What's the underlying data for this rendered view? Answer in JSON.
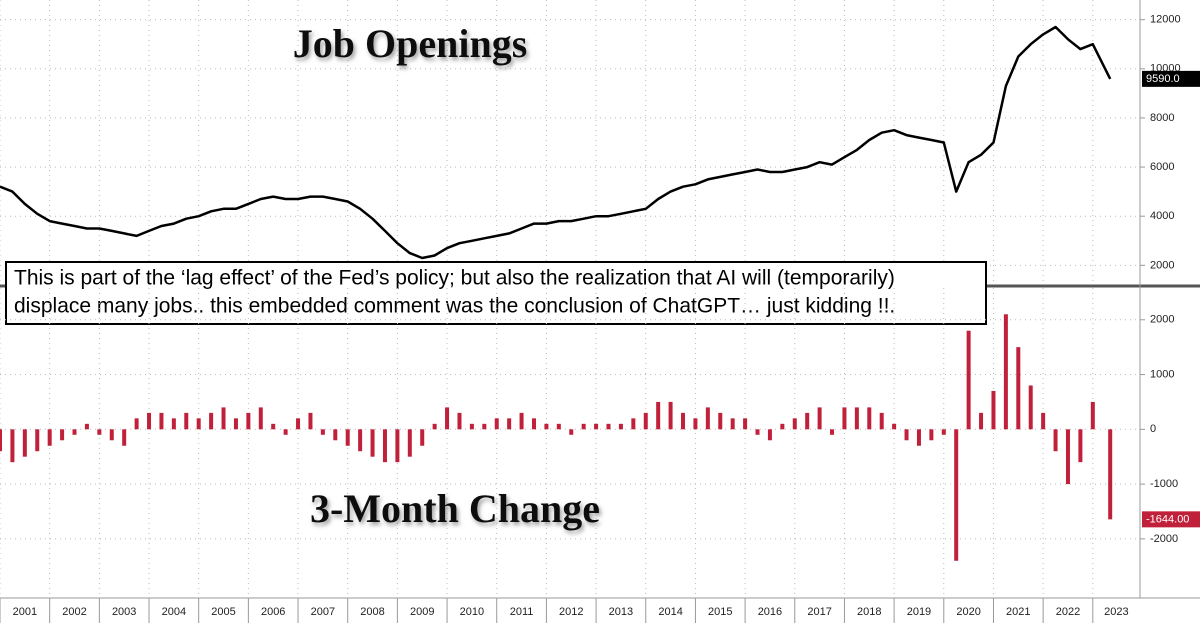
{
  "chart_data": [
    {
      "type": "line",
      "title": "Job Openings",
      "x": [
        2001.0,
        2001.25,
        2001.5,
        2001.75,
        2002.0,
        2002.25,
        2002.5,
        2002.75,
        2003.0,
        2003.25,
        2003.5,
        2003.75,
        2004.0,
        2004.25,
        2004.5,
        2004.75,
        2005.0,
        2005.25,
        2005.5,
        2005.75,
        2006.0,
        2006.25,
        2006.5,
        2006.75,
        2007.0,
        2007.25,
        2007.5,
        2007.75,
        2008.0,
        2008.25,
        2008.5,
        2008.75,
        2009.0,
        2009.25,
        2009.5,
        2009.75,
        2010.0,
        2010.25,
        2010.5,
        2010.75,
        2011.0,
        2011.25,
        2011.5,
        2011.75,
        2012.0,
        2012.25,
        2012.5,
        2012.75,
        2013.0,
        2013.25,
        2013.5,
        2013.75,
        2014.0,
        2014.25,
        2014.5,
        2014.75,
        2015.0,
        2015.25,
        2015.5,
        2015.75,
        2016.0,
        2016.25,
        2016.5,
        2016.75,
        2017.0,
        2017.25,
        2017.5,
        2017.75,
        2018.0,
        2018.25,
        2018.5,
        2018.75,
        2019.0,
        2019.25,
        2019.5,
        2019.75,
        2020.0,
        2020.25,
        2020.5,
        2020.75,
        2021.0,
        2021.25,
        2021.5,
        2021.75,
        2022.0,
        2022.25,
        2022.5,
        2022.75,
        2023.0,
        2023.35
      ],
      "series": [
        {
          "name": "Job Openings",
          "color": "#000000",
          "values": [
            5200,
            5000,
            4500,
            4100,
            3800,
            3700,
            3600,
            3500,
            3500,
            3400,
            3300,
            3200,
            3400,
            3600,
            3700,
            3900,
            4000,
            4200,
            4300,
            4300,
            4500,
            4700,
            4800,
            4700,
            4700,
            4800,
            4800,
            4700,
            4600,
            4300,
            3900,
            3400,
            2900,
            2500,
            2300,
            2400,
            2700,
            2900,
            3000,
            3100,
            3200,
            3300,
            3500,
            3700,
            3700,
            3800,
            3800,
            3900,
            4000,
            4000,
            4100,
            4200,
            4300,
            4700,
            5000,
            5200,
            5300,
            5500,
            5600,
            5700,
            5800,
            5900,
            5800,
            5800,
            5900,
            6000,
            6200,
            6100,
            6400,
            6700,
            7100,
            7400,
            7500,
            7300,
            7200,
            7100,
            7000,
            5000,
            6200,
            6500,
            7000,
            9300,
            10500,
            11000,
            11400,
            11700,
            11200,
            10800,
            11000,
            9590
          ],
          "value_labels": [
            null,
            null,
            null,
            null,
            null,
            null,
            null,
            null,
            null,
            null,
            null,
            null,
            null,
            null,
            null,
            null,
            null,
            null,
            null,
            null,
            null,
            null,
            null,
            null,
            null,
            null,
            null,
            null,
            null,
            null,
            null,
            null,
            null,
            null,
            null,
            null,
            null,
            null,
            null,
            null,
            null,
            null,
            null,
            null,
            null,
            null,
            null,
            null,
            null,
            null,
            null,
            null,
            null,
            null,
            null,
            null,
            null,
            null,
            null,
            null,
            null,
            null,
            null,
            null,
            null,
            null,
            null,
            null,
            null,
            null,
            null,
            null,
            null,
            null,
            null,
            null,
            null,
            null,
            null,
            null,
            null,
            null,
            null,
            null,
            null,
            null,
            null,
            null,
            null,
            "9590.0"
          ]
        }
      ],
      "xlim": [
        2001,
        2023.95
      ],
      "xticks": [
        2001,
        2002,
        2003,
        2004,
        2005,
        2006,
        2007,
        2008,
        2009,
        2010,
        2011,
        2012,
        2013,
        2014,
        2015,
        2016,
        2017,
        2018,
        2019,
        2020,
        2021,
        2022,
        2023
      ],
      "ylim": [
        1200,
        12800
      ],
      "yticks": [
        2000,
        4000,
        6000,
        8000,
        10000,
        12000
      ],
      "grid": true,
      "annotation": [
        "This is part of the ‘lag effect’ of the Fed’s policy; but also the realization that AI will (temporarily)",
        "displace many jobs.. this embedded comment was the conclusion of ChatGPT… just kidding !!."
      ]
    },
    {
      "type": "bar",
      "title": "3-Month Change",
      "x": [
        2001.0,
        2001.25,
        2001.5,
        2001.75,
        2002.0,
        2002.25,
        2002.5,
        2002.75,
        2003.0,
        2003.25,
        2003.5,
        2003.75,
        2004.0,
        2004.25,
        2004.5,
        2004.75,
        2005.0,
        2005.25,
        2005.5,
        2005.75,
        2006.0,
        2006.25,
        2006.5,
        2006.75,
        2007.0,
        2007.25,
        2007.5,
        2007.75,
        2008.0,
        2008.25,
        2008.5,
        2008.75,
        2009.0,
        2009.25,
        2009.5,
        2009.75,
        2010.0,
        2010.25,
        2010.5,
        2010.75,
        2011.0,
        2011.25,
        2011.5,
        2011.75,
        2012.0,
        2012.25,
        2012.5,
        2012.75,
        2013.0,
        2013.25,
        2013.5,
        2013.75,
        2014.0,
        2014.25,
        2014.5,
        2014.75,
        2015.0,
        2015.25,
        2015.5,
        2015.75,
        2016.0,
        2016.25,
        2016.5,
        2016.75,
        2017.0,
        2017.25,
        2017.5,
        2017.75,
        2018.0,
        2018.25,
        2018.5,
        2018.75,
        2019.0,
        2019.25,
        2019.5,
        2019.75,
        2020.0,
        2020.25,
        2020.5,
        2020.75,
        2021.0,
        2021.25,
        2021.5,
        2021.75,
        2022.0,
        2022.25,
        2022.5,
        2022.75,
        2023.0,
        2023.35
      ],
      "series": [
        {
          "name": "3-Month Change",
          "color": "#c0203a",
          "values": [
            -400,
            -600,
            -500,
            -400,
            -300,
            -200,
            -100,
            100,
            -100,
            -200,
            -300,
            200,
            300,
            300,
            200,
            300,
            200,
            300,
            400,
            200,
            300,
            400,
            100,
            -100,
            200,
            300,
            -100,
            -200,
            -300,
            -400,
            -500,
            -600,
            -600,
            -500,
            -300,
            100,
            400,
            300,
            100,
            100,
            200,
            200,
            300,
            200,
            100,
            100,
            -100,
            100,
            100,
            100,
            100,
            200,
            300,
            500,
            500,
            300,
            200,
            400,
            300,
            200,
            200,
            -100,
            -200,
            100,
            200,
            300,
            400,
            -100,
            400,
            400,
            400,
            300,
            100,
            -200,
            -300,
            -200,
            -100,
            -2400,
            1800,
            300,
            700,
            2100,
            1500,
            800,
            300,
            -400,
            -1000,
            -600,
            500,
            -1644
          ],
          "value_labels": [
            null,
            null,
            null,
            null,
            null,
            null,
            null,
            null,
            null,
            null,
            null,
            null,
            null,
            null,
            null,
            null,
            null,
            null,
            null,
            null,
            null,
            null,
            null,
            null,
            null,
            null,
            null,
            null,
            null,
            null,
            null,
            null,
            null,
            null,
            null,
            null,
            null,
            null,
            null,
            null,
            null,
            null,
            null,
            null,
            null,
            null,
            null,
            null,
            null,
            null,
            null,
            null,
            null,
            null,
            null,
            null,
            null,
            null,
            null,
            null,
            null,
            null,
            null,
            null,
            null,
            null,
            null,
            null,
            null,
            null,
            null,
            null,
            null,
            null,
            null,
            null,
            null,
            null,
            null,
            null,
            null,
            null,
            null,
            null,
            null,
            null,
            null,
            null,
            null,
            "-1644.00"
          ]
        }
      ],
      "xlim": [
        2001,
        2023.95
      ],
      "xticks": [
        2001,
        2002,
        2003,
        2004,
        2005,
        2006,
        2007,
        2008,
        2009,
        2010,
        2011,
        2012,
        2013,
        2014,
        2015,
        2016,
        2017,
        2018,
        2019,
        2020,
        2021,
        2022,
        2023
      ],
      "ylim": [
        -3080,
        2580
      ],
      "yticks": [
        -2000,
        -1000,
        0,
        1000,
        2000
      ],
      "grid": true
    }
  ]
}
